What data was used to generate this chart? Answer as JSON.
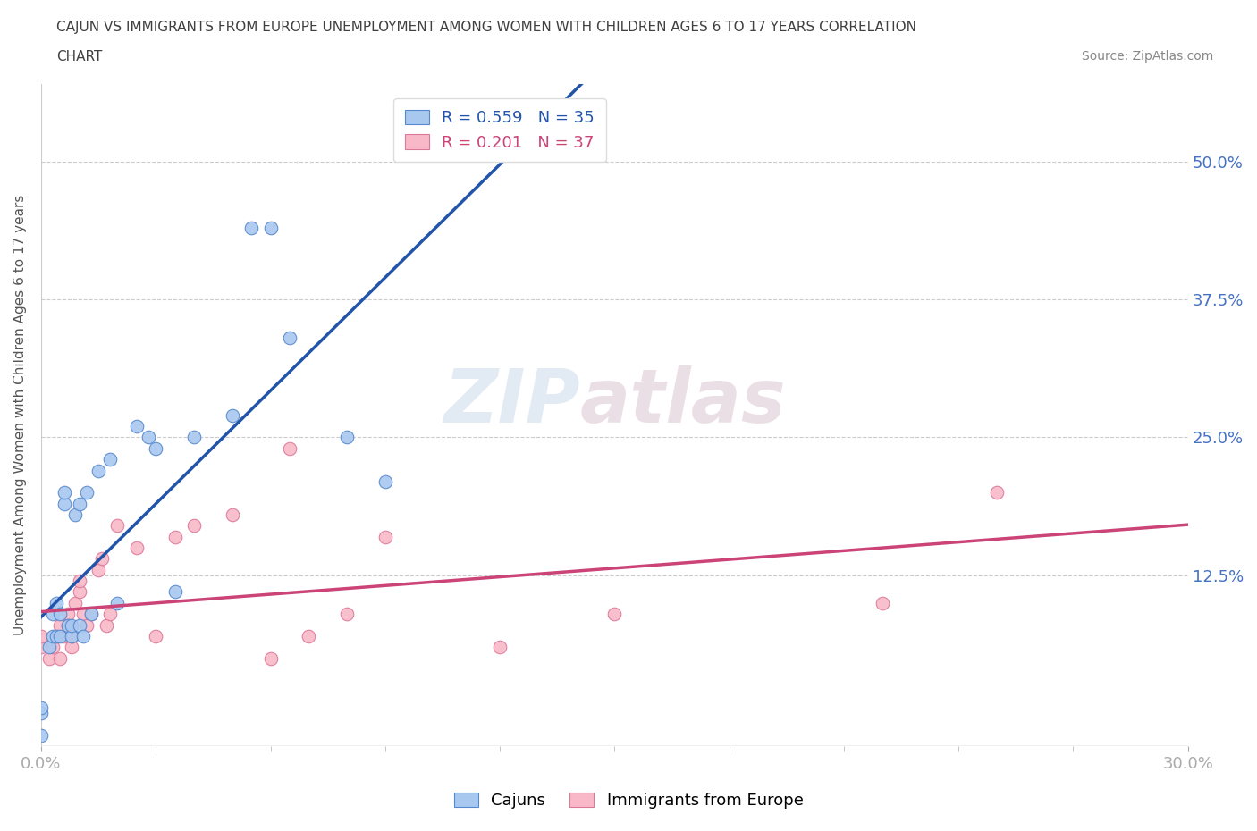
{
  "title_line1": "CAJUN VS IMMIGRANTS FROM EUROPE UNEMPLOYMENT AMONG WOMEN WITH CHILDREN AGES 6 TO 17 YEARS CORRELATION",
  "title_line2": "CHART",
  "source_text": "Source: ZipAtlas.com",
  "ylabel": "Unemployment Among Women with Children Ages 6 to 17 years",
  "xlim": [
    0.0,
    0.3
  ],
  "ylim": [
    -0.03,
    0.57
  ],
  "yticks": [
    0.0,
    0.125,
    0.25,
    0.375,
    0.5
  ],
  "yticklabels": [
    "",
    "12.5%",
    "25.0%",
    "37.5%",
    "50.0%"
  ],
  "xticklabels_left": "0.0%",
  "xticklabels_right": "30.0%",
  "watermark_zip": "ZIP",
  "watermark_atlas": "atlas",
  "cajun_color": "#a8c8f0",
  "cajun_edge_color": "#5588cc",
  "cajun_line_color": "#2255aa",
  "immigrant_color": "#f8b8c8",
  "immigrant_edge_color": "#dd7799",
  "immigrant_line_color": "#cc4477",
  "legend_cajun_r": "R = 0.559",
  "legend_cajun_n": "N = 35",
  "legend_imm_r": "R = 0.201",
  "legend_imm_n": "N = 37",
  "cajun_scatter_x": [
    0.0,
    0.0,
    0.0,
    0.002,
    0.003,
    0.003,
    0.004,
    0.004,
    0.005,
    0.005,
    0.006,
    0.006,
    0.007,
    0.008,
    0.008,
    0.009,
    0.01,
    0.01,
    0.011,
    0.012,
    0.013,
    0.015,
    0.018,
    0.02,
    0.025,
    0.028,
    0.03,
    0.035,
    0.04,
    0.05,
    0.055,
    0.06,
    0.065,
    0.08,
    0.09
  ],
  "cajun_scatter_y": [
    -0.02,
    0.0,
    0.005,
    0.06,
    0.07,
    0.09,
    0.07,
    0.1,
    0.07,
    0.09,
    0.19,
    0.2,
    0.08,
    0.07,
    0.08,
    0.18,
    0.08,
    0.19,
    0.07,
    0.2,
    0.09,
    0.22,
    0.23,
    0.1,
    0.26,
    0.25,
    0.24,
    0.11,
    0.25,
    0.27,
    0.44,
    0.44,
    0.34,
    0.25,
    0.21
  ],
  "immigrant_scatter_x": [
    0.0,
    0.0,
    0.002,
    0.003,
    0.004,
    0.005,
    0.005,
    0.006,
    0.007,
    0.007,
    0.008,
    0.008,
    0.009,
    0.01,
    0.01,
    0.011,
    0.012,
    0.013,
    0.015,
    0.016,
    0.017,
    0.018,
    0.02,
    0.025,
    0.03,
    0.035,
    0.04,
    0.05,
    0.06,
    0.065,
    0.07,
    0.08,
    0.09,
    0.12,
    0.15,
    0.22,
    0.25
  ],
  "immigrant_scatter_y": [
    0.06,
    0.07,
    0.05,
    0.06,
    0.07,
    0.05,
    0.08,
    0.07,
    0.09,
    0.08,
    0.06,
    0.07,
    0.1,
    0.11,
    0.12,
    0.09,
    0.08,
    0.09,
    0.13,
    0.14,
    0.08,
    0.09,
    0.17,
    0.15,
    0.07,
    0.16,
    0.17,
    0.18,
    0.05,
    0.24,
    0.07,
    0.09,
    0.16,
    0.06,
    0.09,
    0.1,
    0.2
  ],
  "background_color": "#ffffff",
  "grid_color": "#cccccc",
  "tick_color": "#4472c4",
  "title_color": "#404040",
  "figsize": [
    14.06,
    9.3
  ],
  "dpi": 100
}
